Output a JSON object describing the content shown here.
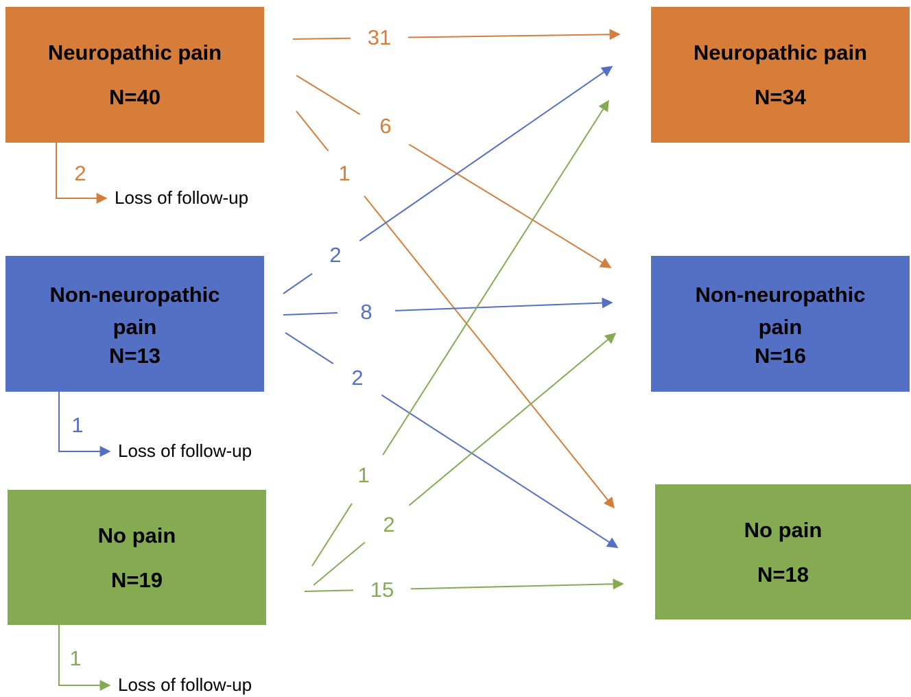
{
  "left_nodes": [
    {
      "label": "Neuropathic pain",
      "count": "N=40"
    },
    {
      "label": "Non-neuropathic pain",
      "count": "N=13"
    },
    {
      "label": "No pain",
      "count": "N=19"
    }
  ],
  "right_nodes": [
    {
      "label": "Neuropathic pain",
      "count": "N=34"
    },
    {
      "label": "Non-neuropathic pain",
      "count": "N=16"
    },
    {
      "label": "No pain",
      "count": "N=18"
    }
  ],
  "edges": [
    {
      "from": 0,
      "to": 0,
      "label": "31"
    },
    {
      "from": 0,
      "to": 1,
      "label": "6"
    },
    {
      "from": 0,
      "to": 2,
      "label": "1"
    },
    {
      "from": 1,
      "to": 0,
      "label": "2"
    },
    {
      "from": 1,
      "to": 1,
      "label": "8"
    },
    {
      "from": 1,
      "to": 2,
      "label": "2"
    },
    {
      "from": 2,
      "to": 0,
      "label": "1"
    },
    {
      "from": 2,
      "to": 1,
      "label": "2"
    },
    {
      "from": 2,
      "to": 2,
      "label": "15"
    }
  ],
  "losses": [
    {
      "from": 0,
      "label": "2",
      "text": "Loss of follow-up"
    },
    {
      "from": 1,
      "label": "1",
      "text": "Loss of follow-up"
    },
    {
      "from": 2,
      "label": "1",
      "text": "Loss of follow-up"
    }
  ]
}
